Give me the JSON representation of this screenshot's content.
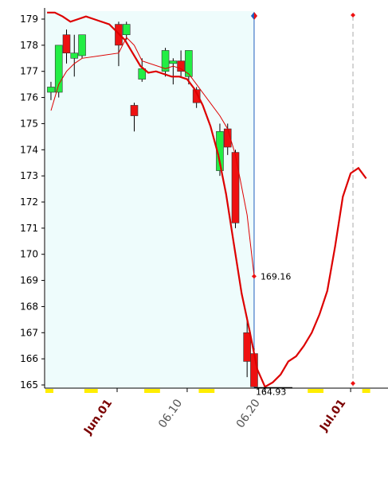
{
  "chart_data": {
    "type": "candlestick",
    "colors": {
      "up_fill": "#22ee44",
      "down_fill": "#ee1111",
      "ma_line": "#dd0000",
      "highlight_bg": "#eefcfc",
      "cursor_line": "#1f5fbf",
      "date_month": "#7a0000",
      "date_day": "#555555",
      "weekend_marker": "#ffee00"
    },
    "y_axis": {
      "min": 165,
      "max": 179,
      "ticks": [
        179,
        178,
        177,
        176,
        175,
        174,
        173,
        172,
        171,
        170,
        169,
        168,
        167,
        166,
        165
      ]
    },
    "x_labels": [
      {
        "text": "Jun.01",
        "day": 1,
        "kind": "month"
      },
      {
        "text": "06.10",
        "day": 10,
        "kind": "day"
      },
      {
        "text": "06.20",
        "day": 20,
        "kind": "day"
      },
      {
        "text": "Jul.01",
        "day": 31,
        "kind": "month"
      }
    ],
    "candles": [
      {
        "day": -7.5,
        "open": 176.2,
        "close": 176.4,
        "high": 176.6,
        "low": 175.9
      },
      {
        "day": -6.5,
        "open": 176.2,
        "close": 178.0,
        "high": 178.0,
        "low": 176.0
      },
      {
        "day": -5.5,
        "open": 178.4,
        "close": 177.7,
        "high": 178.6,
        "low": 177.3
      },
      {
        "day": -4.5,
        "open": 177.5,
        "close": 177.7,
        "high": 178.4,
        "low": 176.8
      },
      {
        "day": -3.5,
        "open": 177.6,
        "close": 178.4,
        "high": 178.4,
        "low": 177.5
      },
      {
        "day": 1.2,
        "open": 178.8,
        "close": 178.0,
        "high": 178.9,
        "low": 177.2
      },
      {
        "day": 2.2,
        "open": 178.4,
        "close": 178.8,
        "high": 178.9,
        "low": 178.2
      },
      {
        "day": 3.2,
        "open": 175.7,
        "close": 175.3,
        "high": 175.8,
        "low": 174.7
      },
      {
        "day": 4.2,
        "open": 176.7,
        "close": 177.1,
        "high": 177.5,
        "low": 176.6
      },
      {
        "day": 7.2,
        "open": 177.0,
        "close": 177.8,
        "high": 177.9,
        "low": 176.8
      },
      {
        "day": 8.2,
        "open": 177.3,
        "close": 177.4,
        "high": 177.5,
        "low": 176.5
      },
      {
        "day": 9.2,
        "open": 177.4,
        "close": 177.0,
        "high": 177.8,
        "low": 176.8
      },
      {
        "day": 10.2,
        "open": 176.8,
        "close": 177.8,
        "high": 177.8,
        "low": 176.5
      },
      {
        "day": 11.2,
        "open": 176.3,
        "close": 175.8,
        "high": 176.4,
        "low": 175.6
      },
      {
        "day": 14.2,
        "open": 173.2,
        "close": 174.7,
        "high": 175.0,
        "low": 173.0
      },
      {
        "day": 15.2,
        "open": 174.8,
        "close": 174.1,
        "high": 175.0,
        "low": 173.8
      },
      {
        "day": 16.2,
        "open": 173.9,
        "close": 171.2,
        "high": 174.0,
        "low": 171.0
      },
      {
        "day": 17.7,
        "open": 167.0,
        "close": 165.9,
        "high": 167.6,
        "low": 165.3
      },
      {
        "day": 18.6,
        "open": 166.2,
        "close": 164.93,
        "high": 166.4,
        "low": 164.93
      }
    ],
    "ma_thin": [
      {
        "day": -7.5,
        "value": 175.5
      },
      {
        "day": -6.5,
        "value": 176.5
      },
      {
        "day": -5.5,
        "value": 177.0
      },
      {
        "day": -4.5,
        "value": 177.3
      },
      {
        "day": -3.5,
        "value": 177.5
      },
      {
        "day": 1.2,
        "value": 177.7
      },
      {
        "day": 2.2,
        "value": 178.3
      },
      {
        "day": 3.2,
        "value": 178.0
      },
      {
        "day": 4.2,
        "value": 177.4
      },
      {
        "day": 7.2,
        "value": 177.1
      },
      {
        "day": 8.2,
        "value": 177.2
      },
      {
        "day": 9.2,
        "value": 177.1
      },
      {
        "day": 10.2,
        "value": 176.9
      },
      {
        "day": 11.2,
        "value": 176.5
      },
      {
        "day": 14.2,
        "value": 175.3
      },
      {
        "day": 15.2,
        "value": 174.8
      },
      {
        "day": 16.2,
        "value": 173.8
      },
      {
        "day": 17.7,
        "value": 171.5
      },
      {
        "day": 18.6,
        "value": 169.16
      }
    ],
    "ma_thick": [
      {
        "day": -8.0,
        "value": 179.25
      },
      {
        "day": -7.0,
        "value": 179.25
      },
      {
        "day": -6.0,
        "value": 179.1
      },
      {
        "day": -5.0,
        "value": 178.9
      },
      {
        "day": -4.0,
        "value": 179.0
      },
      {
        "day": -3.0,
        "value": 179.1
      },
      {
        "day": -2.0,
        "value": 179.0
      },
      {
        "day": 0.0,
        "value": 178.8
      },
      {
        "day": 1.0,
        "value": 178.5
      },
      {
        "day": 2.0,
        "value": 178.2
      },
      {
        "day": 3.0,
        "value": 177.7
      },
      {
        "day": 4.0,
        "value": 177.2
      },
      {
        "day": 5.0,
        "value": 176.95
      },
      {
        "day": 6.0,
        "value": 177.0
      },
      {
        "day": 7.0,
        "value": 176.9
      },
      {
        "day": 8.0,
        "value": 176.8
      },
      {
        "day": 9.0,
        "value": 176.8
      },
      {
        "day": 10.0,
        "value": 176.7
      },
      {
        "day": 11.0,
        "value": 176.3
      },
      {
        "day": 12.0,
        "value": 175.7
      },
      {
        "day": 13.0,
        "value": 174.9
      },
      {
        "day": 14.0,
        "value": 173.8
      },
      {
        "day": 15.0,
        "value": 172.3
      },
      {
        "day": 16.0,
        "value": 170.4
      },
      {
        "day": 17.0,
        "value": 168.5
      },
      {
        "day": 18.0,
        "value": 167.1
      },
      {
        "day": 19.0,
        "value": 165.6
      },
      {
        "day": 20.0,
        "value": 164.93
      },
      {
        "day": 21.0,
        "value": 165.1
      },
      {
        "day": 22.0,
        "value": 165.4
      },
      {
        "day": 23.0,
        "value": 165.9
      },
      {
        "day": 24.0,
        "value": 166.1
      },
      {
        "day": 25.0,
        "value": 166.5
      },
      {
        "day": 26.0,
        "value": 167.0
      },
      {
        "day": 27.0,
        "value": 167.7
      },
      {
        "day": 28.0,
        "value": 168.6
      },
      {
        "day": 29.0,
        "value": 170.3
      },
      {
        "day": 30.0,
        "value": 172.2
      },
      {
        "day": 31.0,
        "value": 173.1
      },
      {
        "day": 32.0,
        "value": 173.3
      },
      {
        "day": 33.0,
        "value": 172.9
      }
    ],
    "annotations": [
      {
        "text": "169.16",
        "day": 18.6,
        "value": 169.16
      },
      {
        "text": "164.93",
        "day": 18.6,
        "value": 164.93
      }
    ],
    "cursor_day": 18.6,
    "forecast_day": 31.3,
    "weekend_days": [
      -7.7,
      -2.7,
      -2.0,
      5.0,
      6.0,
      12.0,
      13.0,
      26.0,
      27.0,
      33.0
    ]
  }
}
